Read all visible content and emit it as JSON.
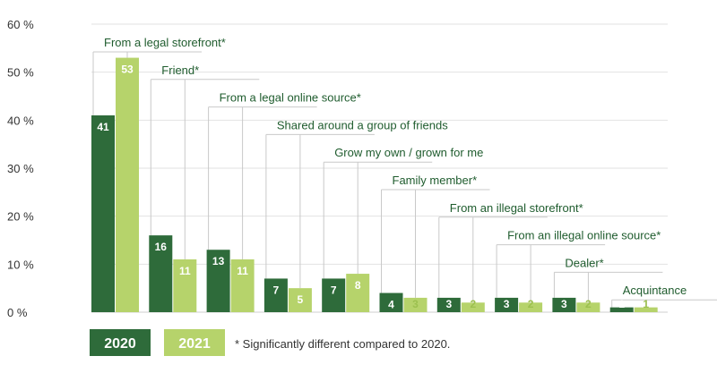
{
  "chart_data": {
    "type": "bar",
    "categories": [
      "From a legal storefront*",
      "Friend*",
      "From a legal online source*",
      "Shared around a group of friends",
      "Grow my own / grown for me",
      "Family member*",
      "From an illegal storefront*",
      "From an illegal online source*",
      "Dealer*",
      "Acquintance"
    ],
    "series": [
      {
        "name": "2020",
        "color": "#2e6b3a",
        "values": [
          41,
          16,
          13,
          7,
          7,
          4,
          3,
          3,
          3,
          1
        ]
      },
      {
        "name": "2021",
        "color": "#b6d36b",
        "values": [
          53,
          11,
          11,
          5,
          8,
          3,
          2,
          2,
          2,
          1
        ]
      }
    ],
    "ylim": [
      0,
      60
    ],
    "yticks": [
      0,
      10,
      20,
      30,
      40,
      50,
      60
    ],
    "ytick_labels": [
      "0 %",
      "10 %",
      "20 %",
      "30 %",
      "40 %",
      "50 %",
      "60 %"
    ],
    "grid": true,
    "legend_placement": "bottom-left",
    "footnote": "* Significantly different compared to 2020."
  }
}
